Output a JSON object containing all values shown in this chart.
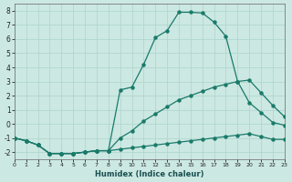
{
  "xlabel": "Humidex (Indice chaleur)",
  "bg_color": "#cce8e2",
  "grid_color": "#aad4cc",
  "line_color": "#1a7a6a",
  "xlim": [
    0,
    23
  ],
  "ylim": [
    -2.5,
    8.5
  ],
  "xticks": [
    0,
    1,
    2,
    3,
    4,
    5,
    6,
    7,
    8,
    9,
    10,
    11,
    12,
    13,
    14,
    15,
    16,
    17,
    18,
    19,
    20,
    21,
    22,
    23
  ],
  "yticks": [
    -2,
    -1,
    0,
    1,
    2,
    3,
    4,
    5,
    6,
    7,
    8
  ],
  "line_bottom_x": [
    0,
    1,
    2,
    3,
    4,
    5,
    6,
    7,
    8,
    9,
    10,
    11,
    12,
    13,
    14,
    15,
    16,
    17,
    18,
    19,
    20,
    21,
    22,
    23
  ],
  "line_bottom_y": [
    -1.0,
    -1.2,
    -1.5,
    -2.1,
    -2.1,
    -2.1,
    -2.0,
    -1.9,
    -1.9,
    -1.8,
    -1.7,
    -1.6,
    -1.5,
    -1.4,
    -1.3,
    -1.2,
    -1.1,
    -1.0,
    -0.9,
    -0.8,
    -0.7,
    -0.9,
    -1.1,
    -1.1
  ],
  "line_mid_x": [
    0,
    1,
    2,
    3,
    4,
    5,
    6,
    7,
    8,
    9,
    10,
    11,
    12,
    13,
    14,
    15,
    16,
    17,
    18,
    19,
    20,
    21,
    22,
    23
  ],
  "line_mid_y": [
    -1.0,
    -1.2,
    -1.5,
    -2.1,
    -2.1,
    -2.1,
    -2.0,
    -1.9,
    -1.9,
    -1.0,
    -0.5,
    0.2,
    0.7,
    1.2,
    1.7,
    2.0,
    2.3,
    2.6,
    2.8,
    3.0,
    3.1,
    2.2,
    1.3,
    0.5
  ],
  "line_top_x": [
    0,
    1,
    2,
    3,
    4,
    5,
    6,
    7,
    8,
    9,
    10,
    11,
    12,
    13,
    14,
    15,
    16,
    17,
    18,
    19,
    20,
    21,
    22,
    23
  ],
  "line_top_y": [
    -1.0,
    -1.2,
    -1.5,
    -2.1,
    -2.1,
    -2.1,
    -2.0,
    -1.9,
    -1.9,
    2.4,
    2.6,
    4.2,
    6.1,
    6.6,
    7.9,
    7.9,
    7.85,
    7.2,
    6.2,
    3.0,
    1.5,
    0.8,
    0.1,
    -0.1
  ]
}
